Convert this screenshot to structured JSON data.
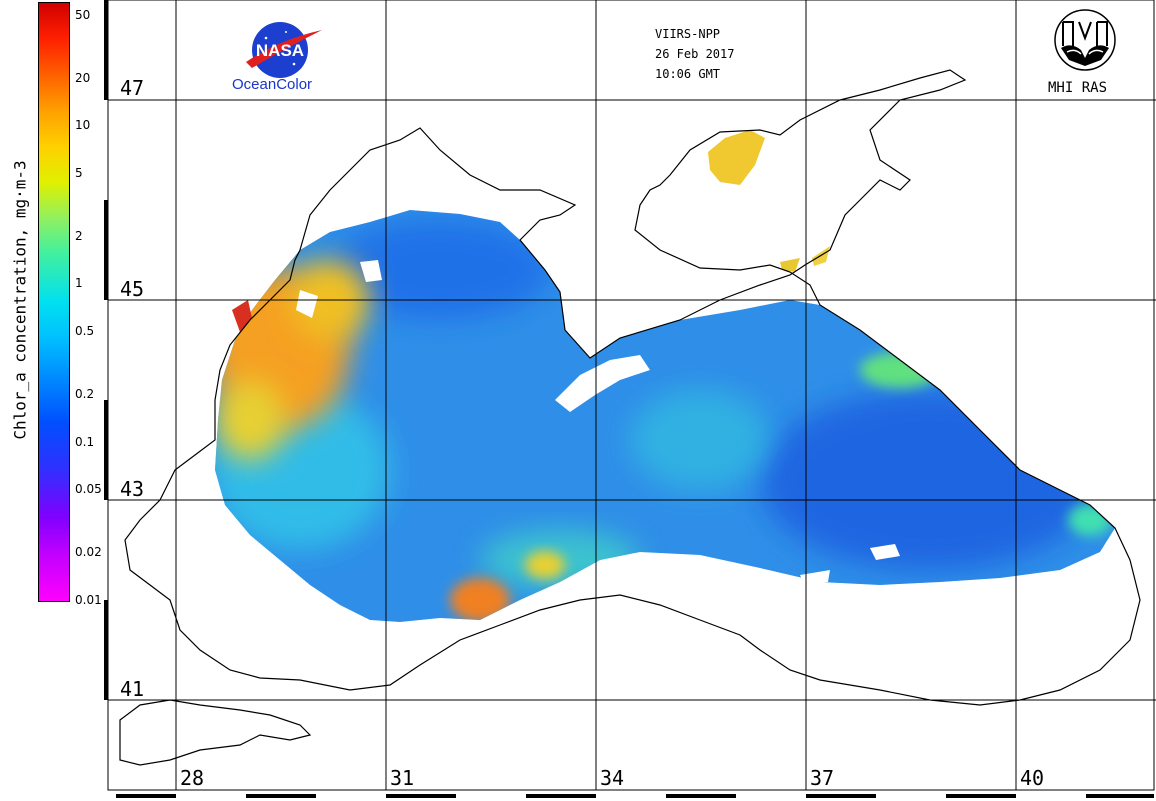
{
  "colorbar": {
    "title": "Chlor_a concentration, mg·m-3",
    "ticks": [
      {
        "label": "50",
        "value": 50
      },
      {
        "label": "20",
        "value": 20
      },
      {
        "label": "10",
        "value": 10
      },
      {
        "label": "5",
        "value": 5
      },
      {
        "label": "2",
        "value": 2
      },
      {
        "label": "1",
        "value": 1
      },
      {
        "label": "0.5",
        "value": 0.5
      },
      {
        "label": "0.2",
        "value": 0.2
      },
      {
        "label": "0.1",
        "value": 0.1
      },
      {
        "label": "0.05",
        "value": 0.05
      },
      {
        "label": "0.02",
        "value": 0.02
      },
      {
        "label": "0.01",
        "value": 0.01
      }
    ]
  },
  "grid": {
    "latitudes": [
      "47",
      "45",
      "43",
      "41"
    ],
    "longitudes": [
      "28",
      "31",
      "34",
      "37",
      "40"
    ]
  },
  "satellite": {
    "sensor": "VIIRS-NPP",
    "date": "26 Feb 2017",
    "time": "10:06 GMT"
  },
  "logos": {
    "nasa_badge": "NASA",
    "nasa_caption": "OceanColor",
    "mhi_caption": "MHI RAS"
  },
  "colors": {
    "open_sea": "#2f8fe8",
    "deep_blue": "#1f5ee0",
    "coastal_high": "#f5a020",
    "very_high": "#e03020",
    "mid": "#30d0e0",
    "land": "#ffffff"
  }
}
